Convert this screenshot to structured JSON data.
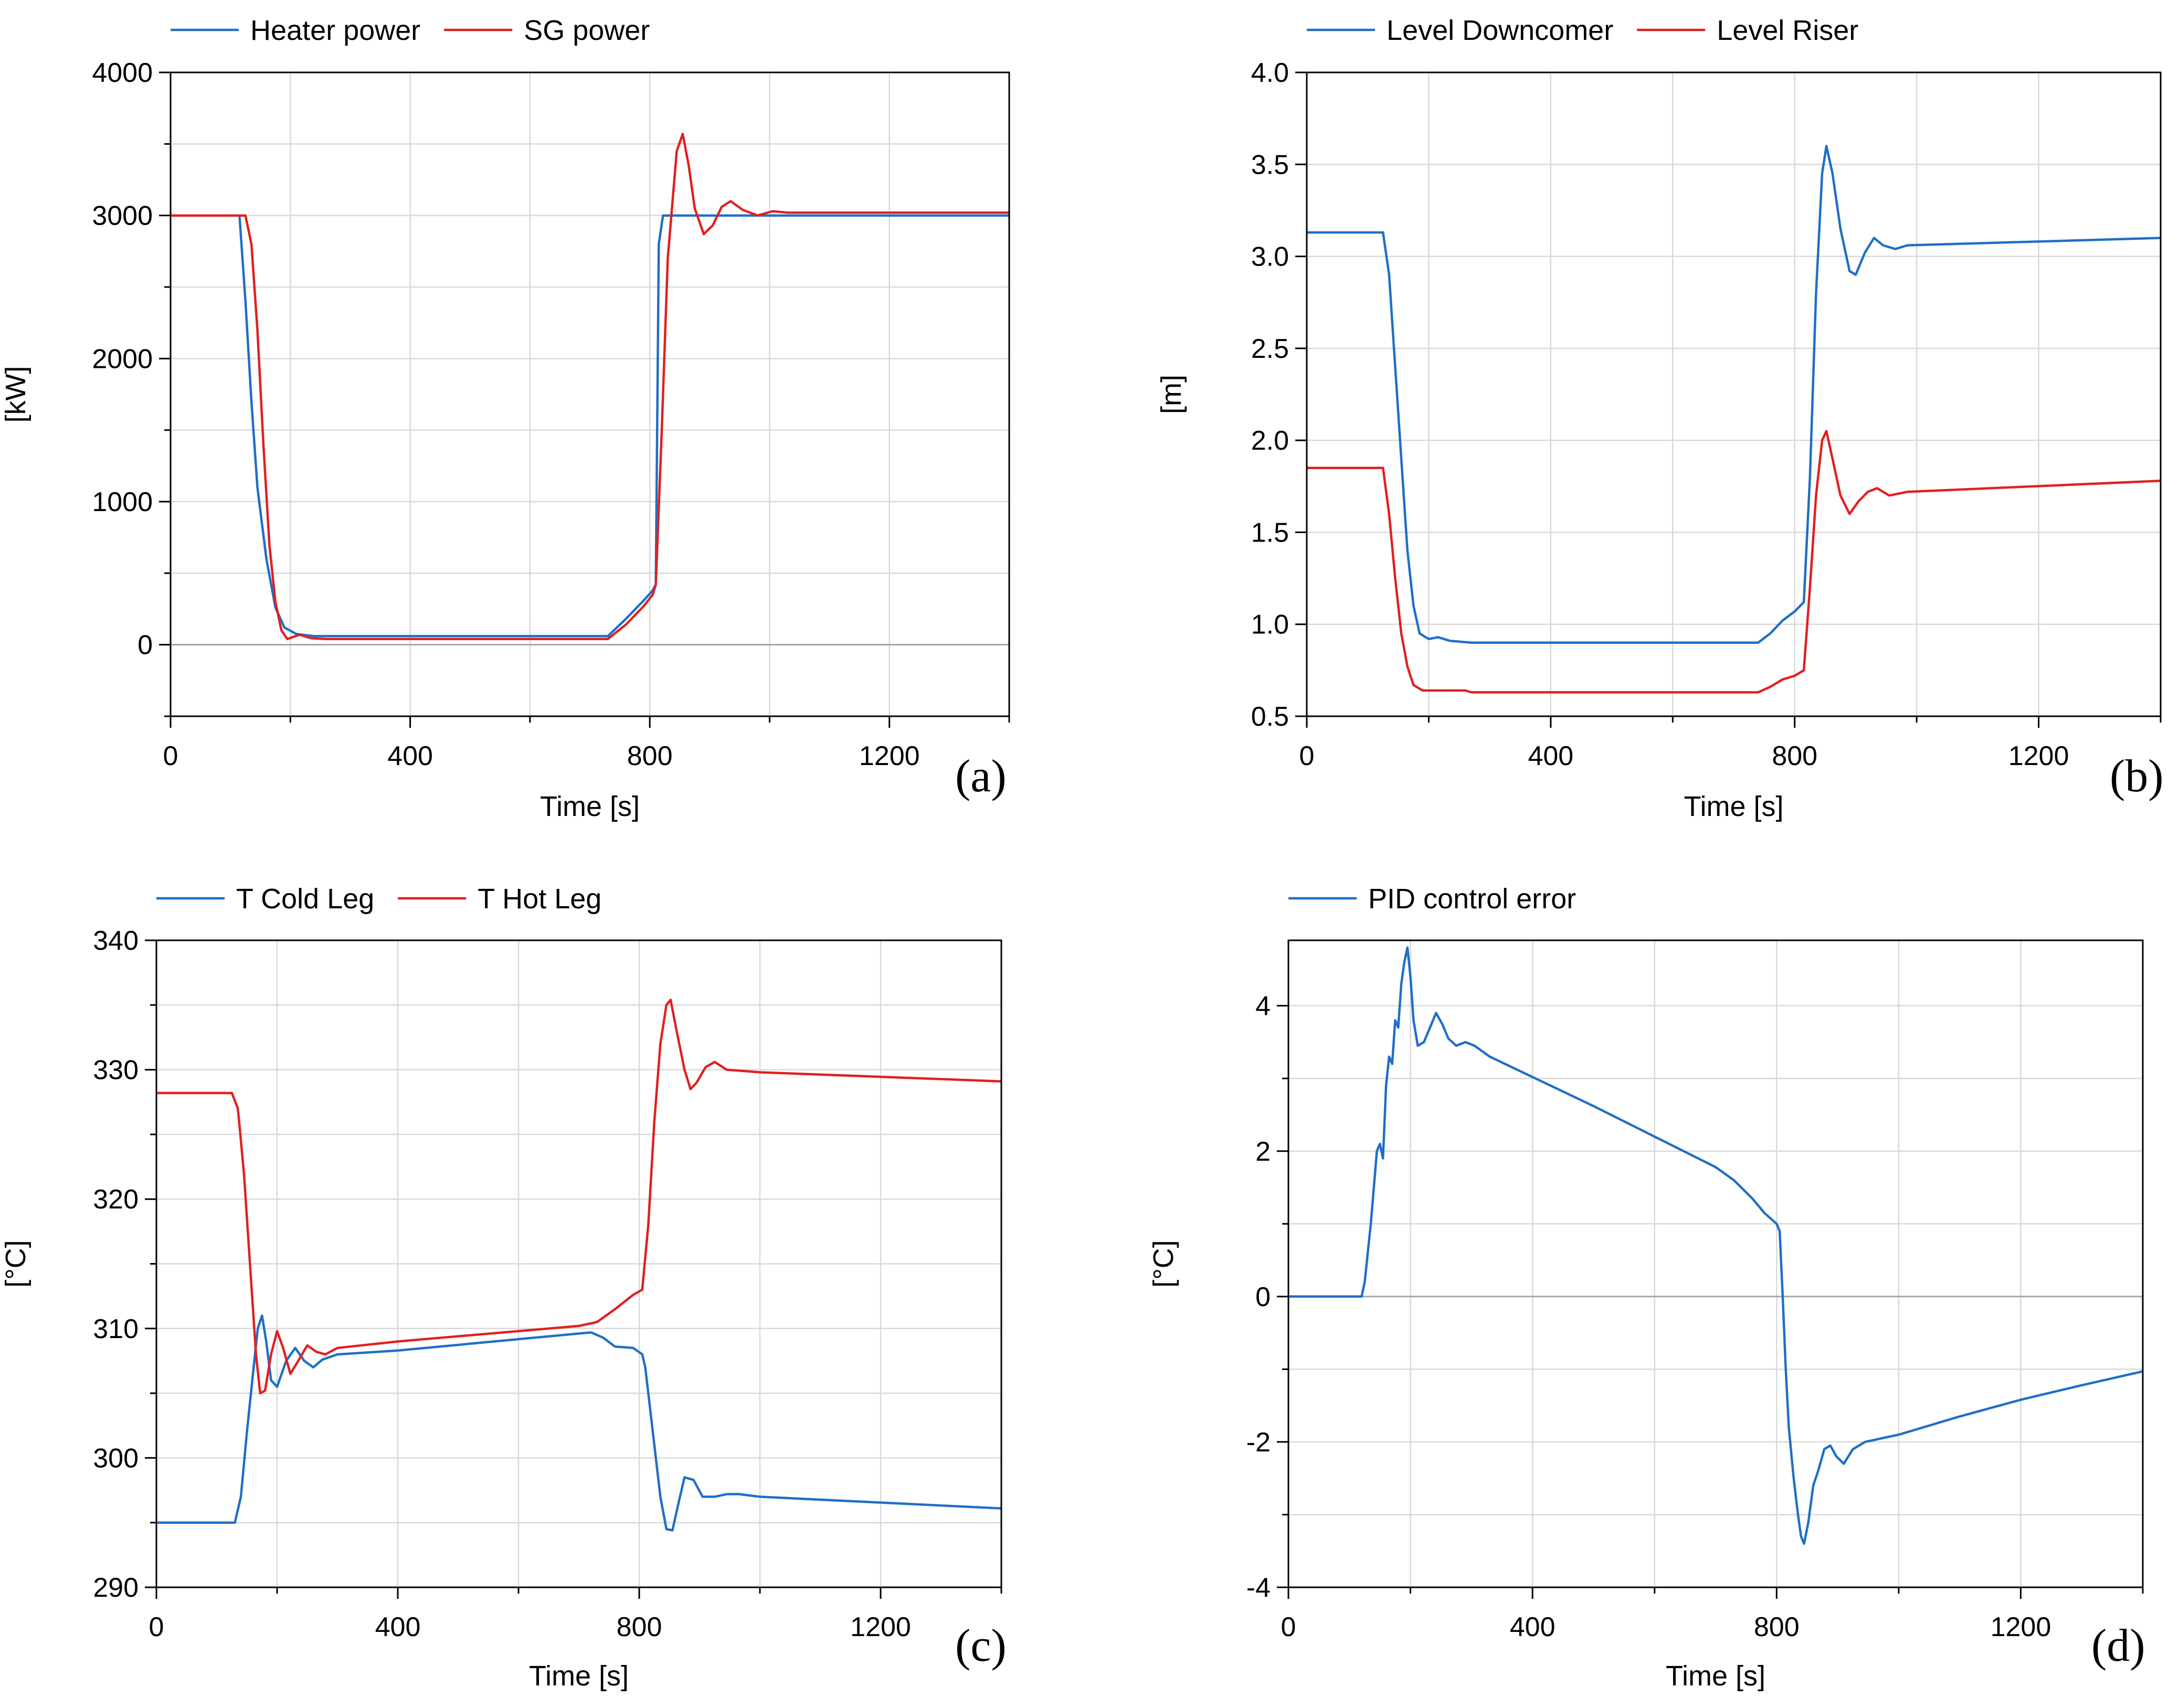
{
  "chart_data": [
    {
      "id": "a",
      "type": "line",
      "panel_label": "(a)",
      "xlabel": "Time [s]",
      "ylabel": "[kW]",
      "xlim": [
        0,
        1400
      ],
      "ylim": [
        -500,
        4000
      ],
      "xticks": [
        0,
        400,
        800,
        1200
      ],
      "xtick_labels": [
        "0",
        "400",
        "800",
        "1200"
      ],
      "xminor": 200,
      "yticks": [
        0,
        1000,
        2000,
        3000,
        4000
      ],
      "ytick_labels": [
        "0",
        "1000",
        "2000",
        "3000",
        "4000"
      ],
      "yminor": 500,
      "zero_line": 0,
      "series": [
        {
          "name": "Heater power",
          "color": "#1f6fc6",
          "points": [
            [
              0,
              3000
            ],
            [
              115,
              3000
            ],
            [
              125,
              2400
            ],
            [
              135,
              1700
            ],
            [
              145,
              1100
            ],
            [
              160,
              600
            ],
            [
              175,
              260
            ],
            [
              190,
              120
            ],
            [
              210,
              75
            ],
            [
              240,
              60
            ],
            [
              730,
              60
            ],
            [
              760,
              180
            ],
            [
              790,
              310
            ],
            [
              805,
              380
            ],
            [
              810,
              420
            ],
            [
              815,
              2800
            ],
            [
              822,
              3000
            ],
            [
              1400,
              3000
            ]
          ]
        },
        {
          "name": "SG power",
          "color": "#e02020",
          "points": [
            [
              0,
              3000
            ],
            [
              125,
              3000
            ],
            [
              135,
              2800
            ],
            [
              145,
              2200
            ],
            [
              155,
              1400
            ],
            [
              165,
              700
            ],
            [
              175,
              300
            ],
            [
              185,
              100
            ],
            [
              195,
              40
            ],
            [
              215,
              70
            ],
            [
              235,
              45
            ],
            [
              260,
              40
            ],
            [
              730,
              40
            ],
            [
              760,
              140
            ],
            [
              790,
              270
            ],
            [
              805,
              350
            ],
            [
              810,
              420
            ],
            [
              820,
              1500
            ],
            [
              830,
              2700
            ],
            [
              845,
              3450
            ],
            [
              855,
              3570
            ],
            [
              865,
              3350
            ],
            [
              875,
              3050
            ],
            [
              890,
              2870
            ],
            [
              905,
              2930
            ],
            [
              920,
              3060
            ],
            [
              935,
              3100
            ],
            [
              955,
              3040
            ],
            [
              980,
              3000
            ],
            [
              1005,
              3030
            ],
            [
              1030,
              3020
            ],
            [
              1400,
              3020
            ]
          ]
        }
      ]
    },
    {
      "id": "b",
      "type": "line",
      "panel_label": "(b)",
      "xlabel": "Time [s]",
      "ylabel": "[m]",
      "xlim": [
        0,
        1400
      ],
      "ylim": [
        0.5,
        4.0
      ],
      "xticks": [
        0,
        400,
        800,
        1200
      ],
      "xtick_labels": [
        "0",
        "400",
        "800",
        "1200"
      ],
      "xminor": 200,
      "yticks": [
        0.5,
        1.0,
        1.5,
        2.0,
        2.5,
        3.0,
        3.5,
        4.0
      ],
      "ytick_labels": [
        "0.5",
        "1.0",
        "1.5",
        "2.0",
        "2.5",
        "3.0",
        "3.5",
        "4.0"
      ],
      "yminor": null,
      "zero_line": null,
      "series": [
        {
          "name": "Level Downcomer",
          "color": "#1f6fc6",
          "points": [
            [
              0,
              3.13
            ],
            [
              125,
              3.13
            ],
            [
              135,
              2.9
            ],
            [
              145,
              2.4
            ],
            [
              155,
              1.9
            ],
            [
              165,
              1.4
            ],
            [
              175,
              1.1
            ],
            [
              185,
              0.95
            ],
            [
              200,
              0.92
            ],
            [
              215,
              0.93
            ],
            [
              235,
              0.91
            ],
            [
              270,
              0.9
            ],
            [
              740,
              0.9
            ],
            [
              760,
              0.95
            ],
            [
              780,
              1.02
            ],
            [
              800,
              1.07
            ],
            [
              815,
              1.12
            ],
            [
              825,
              1.8
            ],
            [
              835,
              2.8
            ],
            [
              845,
              3.45
            ],
            [
              852,
              3.6
            ],
            [
              862,
              3.45
            ],
            [
              875,
              3.15
            ],
            [
              890,
              2.92
            ],
            [
              900,
              2.9
            ],
            [
              915,
              3.02
            ],
            [
              930,
              3.1
            ],
            [
              945,
              3.06
            ],
            [
              965,
              3.04
            ],
            [
              985,
              3.06
            ],
            [
              1400,
              3.1
            ]
          ]
        },
        {
          "name": "Level Riser",
          "color": "#e02020",
          "points": [
            [
              0,
              1.85
            ],
            [
              125,
              1.85
            ],
            [
              135,
              1.6
            ],
            [
              145,
              1.25
            ],
            [
              155,
              0.95
            ],
            [
              165,
              0.77
            ],
            [
              175,
              0.67
            ],
            [
              190,
              0.64
            ],
            [
              260,
              0.64
            ],
            [
              270,
              0.63
            ],
            [
              740,
              0.63
            ],
            [
              760,
              0.66
            ],
            [
              780,
              0.7
            ],
            [
              800,
              0.72
            ],
            [
              815,
              0.75
            ],
            [
              825,
              1.2
            ],
            [
              835,
              1.7
            ],
            [
              845,
              2.0
            ],
            [
              852,
              2.05
            ],
            [
              862,
              1.9
            ],
            [
              875,
              1.7
            ],
            [
              890,
              1.6
            ],
            [
              905,
              1.67
            ],
            [
              920,
              1.72
            ],
            [
              935,
              1.74
            ],
            [
              955,
              1.7
            ],
            [
              985,
              1.72
            ],
            [
              1400,
              1.78
            ]
          ]
        }
      ]
    },
    {
      "id": "c",
      "type": "line",
      "panel_label": "(c)",
      "xlabel": "Time [s]",
      "ylabel": "[°C]",
      "xlim": [
        0,
        1400
      ],
      "ylim": [
        290,
        340
      ],
      "xticks": [
        0,
        400,
        800,
        1200
      ],
      "xtick_labels": [
        "0",
        "400",
        "800",
        "1200"
      ],
      "xminor": 200,
      "yticks": [
        290,
        300,
        310,
        320,
        330,
        340
      ],
      "ytick_labels": [
        "290",
        "300",
        "310",
        "320",
        "330",
        "340"
      ],
      "yminor": 5,
      "zero_line": null,
      "series": [
        {
          "name": "T Cold Leg",
          "color": "#1f6fc6",
          "points": [
            [
              0,
              295
            ],
            [
              130,
              295
            ],
            [
              140,
              297
            ],
            [
              150,
              302
            ],
            [
              160,
              306.5
            ],
            [
              168,
              310
            ],
            [
              175,
              311
            ],
            [
              182,
              309
            ],
            [
              190,
              306
            ],
            [
              200,
              305.5
            ],
            [
              215,
              307.5
            ],
            [
              230,
              308.5
            ],
            [
              245,
              307.5
            ],
            [
              260,
              307
            ],
            [
              275,
              307.6
            ],
            [
              300,
              308
            ],
            [
              400,
              308.3
            ],
            [
              720,
              309.7
            ],
            [
              740,
              309.3
            ],
            [
              760,
              308.6
            ],
            [
              790,
              308.5
            ],
            [
              805,
              308
            ],
            [
              810,
              307
            ],
            [
              815,
              305
            ],
            [
              825,
              301
            ],
            [
              835,
              297
            ],
            [
              845,
              294.5
            ],
            [
              855,
              294.4
            ],
            [
              865,
              296.5
            ],
            [
              875,
              298.5
            ],
            [
              890,
              298.3
            ],
            [
              905,
              297
            ],
            [
              925,
              297
            ],
            [
              945,
              297.2
            ],
            [
              965,
              297.2
            ],
            [
              1000,
              297
            ],
            [
              1400,
              296.1
            ]
          ]
        },
        {
          "name": "T Hot Leg",
          "color": "#e02020",
          "points": [
            [
              0,
              328.2
            ],
            [
              125,
              328.2
            ],
            [
              135,
              327
            ],
            [
              145,
              322
            ],
            [
              155,
              315
            ],
            [
              165,
              308
            ],
            [
              172,
              305
            ],
            [
              180,
              305.2
            ],
            [
              190,
              308
            ],
            [
              200,
              309.8
            ],
            [
              210,
              308.5
            ],
            [
              222,
              306.5
            ],
            [
              235,
              307.5
            ],
            [
              250,
              308.7
            ],
            [
              265,
              308.2
            ],
            [
              280,
              308
            ],
            [
              300,
              308.5
            ],
            [
              400,
              309
            ],
            [
              700,
              310.2
            ],
            [
              730,
              310.5
            ],
            [
              760,
              311.5
            ],
            [
              790,
              312.6
            ],
            [
              805,
              313
            ],
            [
              815,
              318
            ],
            [
              825,
              326
            ],
            [
              835,
              332
            ],
            [
              845,
              335
            ],
            [
              852,
              335.4
            ],
            [
              862,
              333
            ],
            [
              875,
              330
            ],
            [
              885,
              328.5
            ],
            [
              895,
              329
            ],
            [
              910,
              330.2
            ],
            [
              925,
              330.6
            ],
            [
              945,
              330
            ],
            [
              1000,
              329.8
            ],
            [
              1400,
              329.1
            ]
          ]
        }
      ]
    },
    {
      "id": "d",
      "type": "line",
      "panel_label": "(d)",
      "xlabel": "Time [s]",
      "ylabel": "[°C]",
      "xlim": [
        0,
        1400
      ],
      "ylim": [
        -4,
        4.9
      ],
      "xticks": [
        0,
        400,
        800,
        1200
      ],
      "xtick_labels": [
        "0",
        "400",
        "800",
        "1200"
      ],
      "xminor": 200,
      "yticks": [
        -4,
        -2,
        0,
        2,
        4
      ],
      "ytick_labels": [
        "-4",
        "-2",
        "0",
        "2",
        "4"
      ],
      "yminor": 1,
      "zero_line": 0,
      "series": [
        {
          "name": "PID control error",
          "color": "#1f6fc6",
          "points": [
            [
              0,
              0
            ],
            [
              120,
              0
            ],
            [
              125,
              0.2
            ],
            [
              135,
              1
            ],
            [
              145,
              2
            ],
            [
              150,
              2.1
            ],
            [
              155,
              1.9
            ],
            [
              160,
              2.9
            ],
            [
              165,
              3.3
            ],
            [
              170,
              3.2
            ],
            [
              175,
              3.8
            ],
            [
              180,
              3.7
            ],
            [
              185,
              4.3
            ],
            [
              190,
              4.6
            ],
            [
              195,
              4.8
            ],
            [
              200,
              4.4
            ],
            [
              205,
              3.8
            ],
            [
              212,
              3.45
            ],
            [
              222,
              3.5
            ],
            [
              232,
              3.7
            ],
            [
              242,
              3.9
            ],
            [
              252,
              3.75
            ],
            [
              262,
              3.55
            ],
            [
              275,
              3.45
            ],
            [
              290,
              3.5
            ],
            [
              305,
              3.45
            ],
            [
              330,
              3.3
            ],
            [
              400,
              3.02
            ],
            [
              500,
              2.62
            ],
            [
              600,
              2.2
            ],
            [
              700,
              1.78
            ],
            [
              730,
              1.6
            ],
            [
              760,
              1.35
            ],
            [
              780,
              1.15
            ],
            [
              800,
              1.0
            ],
            [
              805,
              0.9
            ],
            [
              810,
              0
            ],
            [
              815,
              -1
            ],
            [
              820,
              -1.8
            ],
            [
              828,
              -2.5
            ],
            [
              835,
              -3
            ],
            [
              840,
              -3.3
            ],
            [
              845,
              -3.4
            ],
            [
              852,
              -3.1
            ],
            [
              860,
              -2.6
            ],
            [
              868,
              -2.4
            ],
            [
              878,
              -2.1
            ],
            [
              888,
              -2.05
            ],
            [
              898,
              -2.2
            ],
            [
              910,
              -2.3
            ],
            [
              925,
              -2.1
            ],
            [
              945,
              -2.0
            ],
            [
              1000,
              -1.9
            ],
            [
              1100,
              -1.65
            ],
            [
              1200,
              -1.42
            ],
            [
              1300,
              -1.22
            ],
            [
              1400,
              -1.03
            ]
          ]
        }
      ]
    }
  ]
}
